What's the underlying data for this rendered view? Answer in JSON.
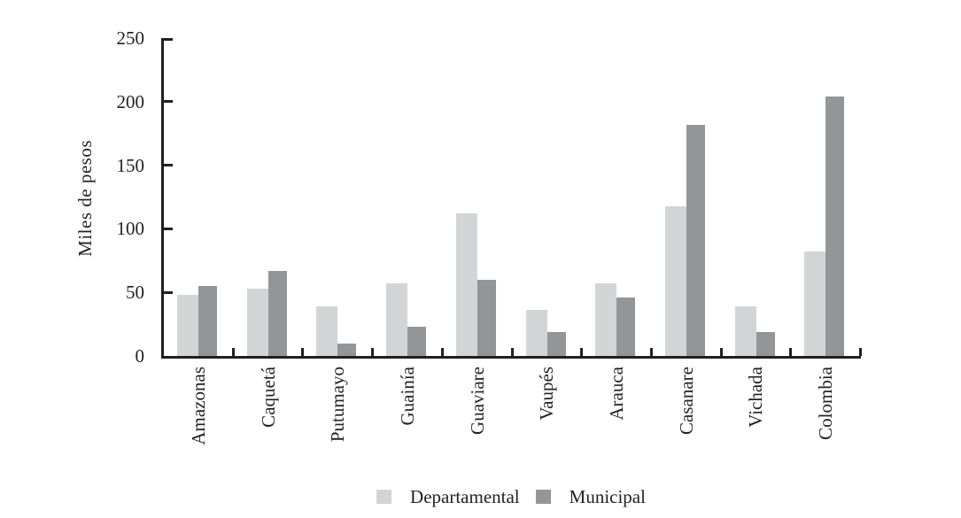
{
  "chart_data": {
    "type": "bar",
    "title": "",
    "xlabel": "",
    "ylabel": "Miles de pesos",
    "categories": [
      "Amazonas",
      "Caquetá",
      "Putumayo",
      "Guainía",
      "Guaviare",
      "Vaupés",
      "Arauca",
      "Casanare",
      "Vichada",
      "Colombia"
    ],
    "series": [
      {
        "name": "Departamental",
        "color": "#d3d4d6",
        "values": [
          48,
          53,
          39,
          57,
          112,
          36,
          57,
          118,
          39,
          82
        ]
      },
      {
        "name": "Municipal",
        "color": "#939598",
        "values": [
          55,
          67,
          10,
          23,
          60,
          19,
          46,
          182,
          19,
          204
        ]
      }
    ],
    "ylim": [
      0,
      250
    ],
    "yticks": [
      0,
      50,
      100,
      150,
      200,
      250
    ],
    "grid": false,
    "legend_position": "bottom-center",
    "axis_color": "#231f20",
    "text_color": "#231f20",
    "background": "#ffffff"
  }
}
